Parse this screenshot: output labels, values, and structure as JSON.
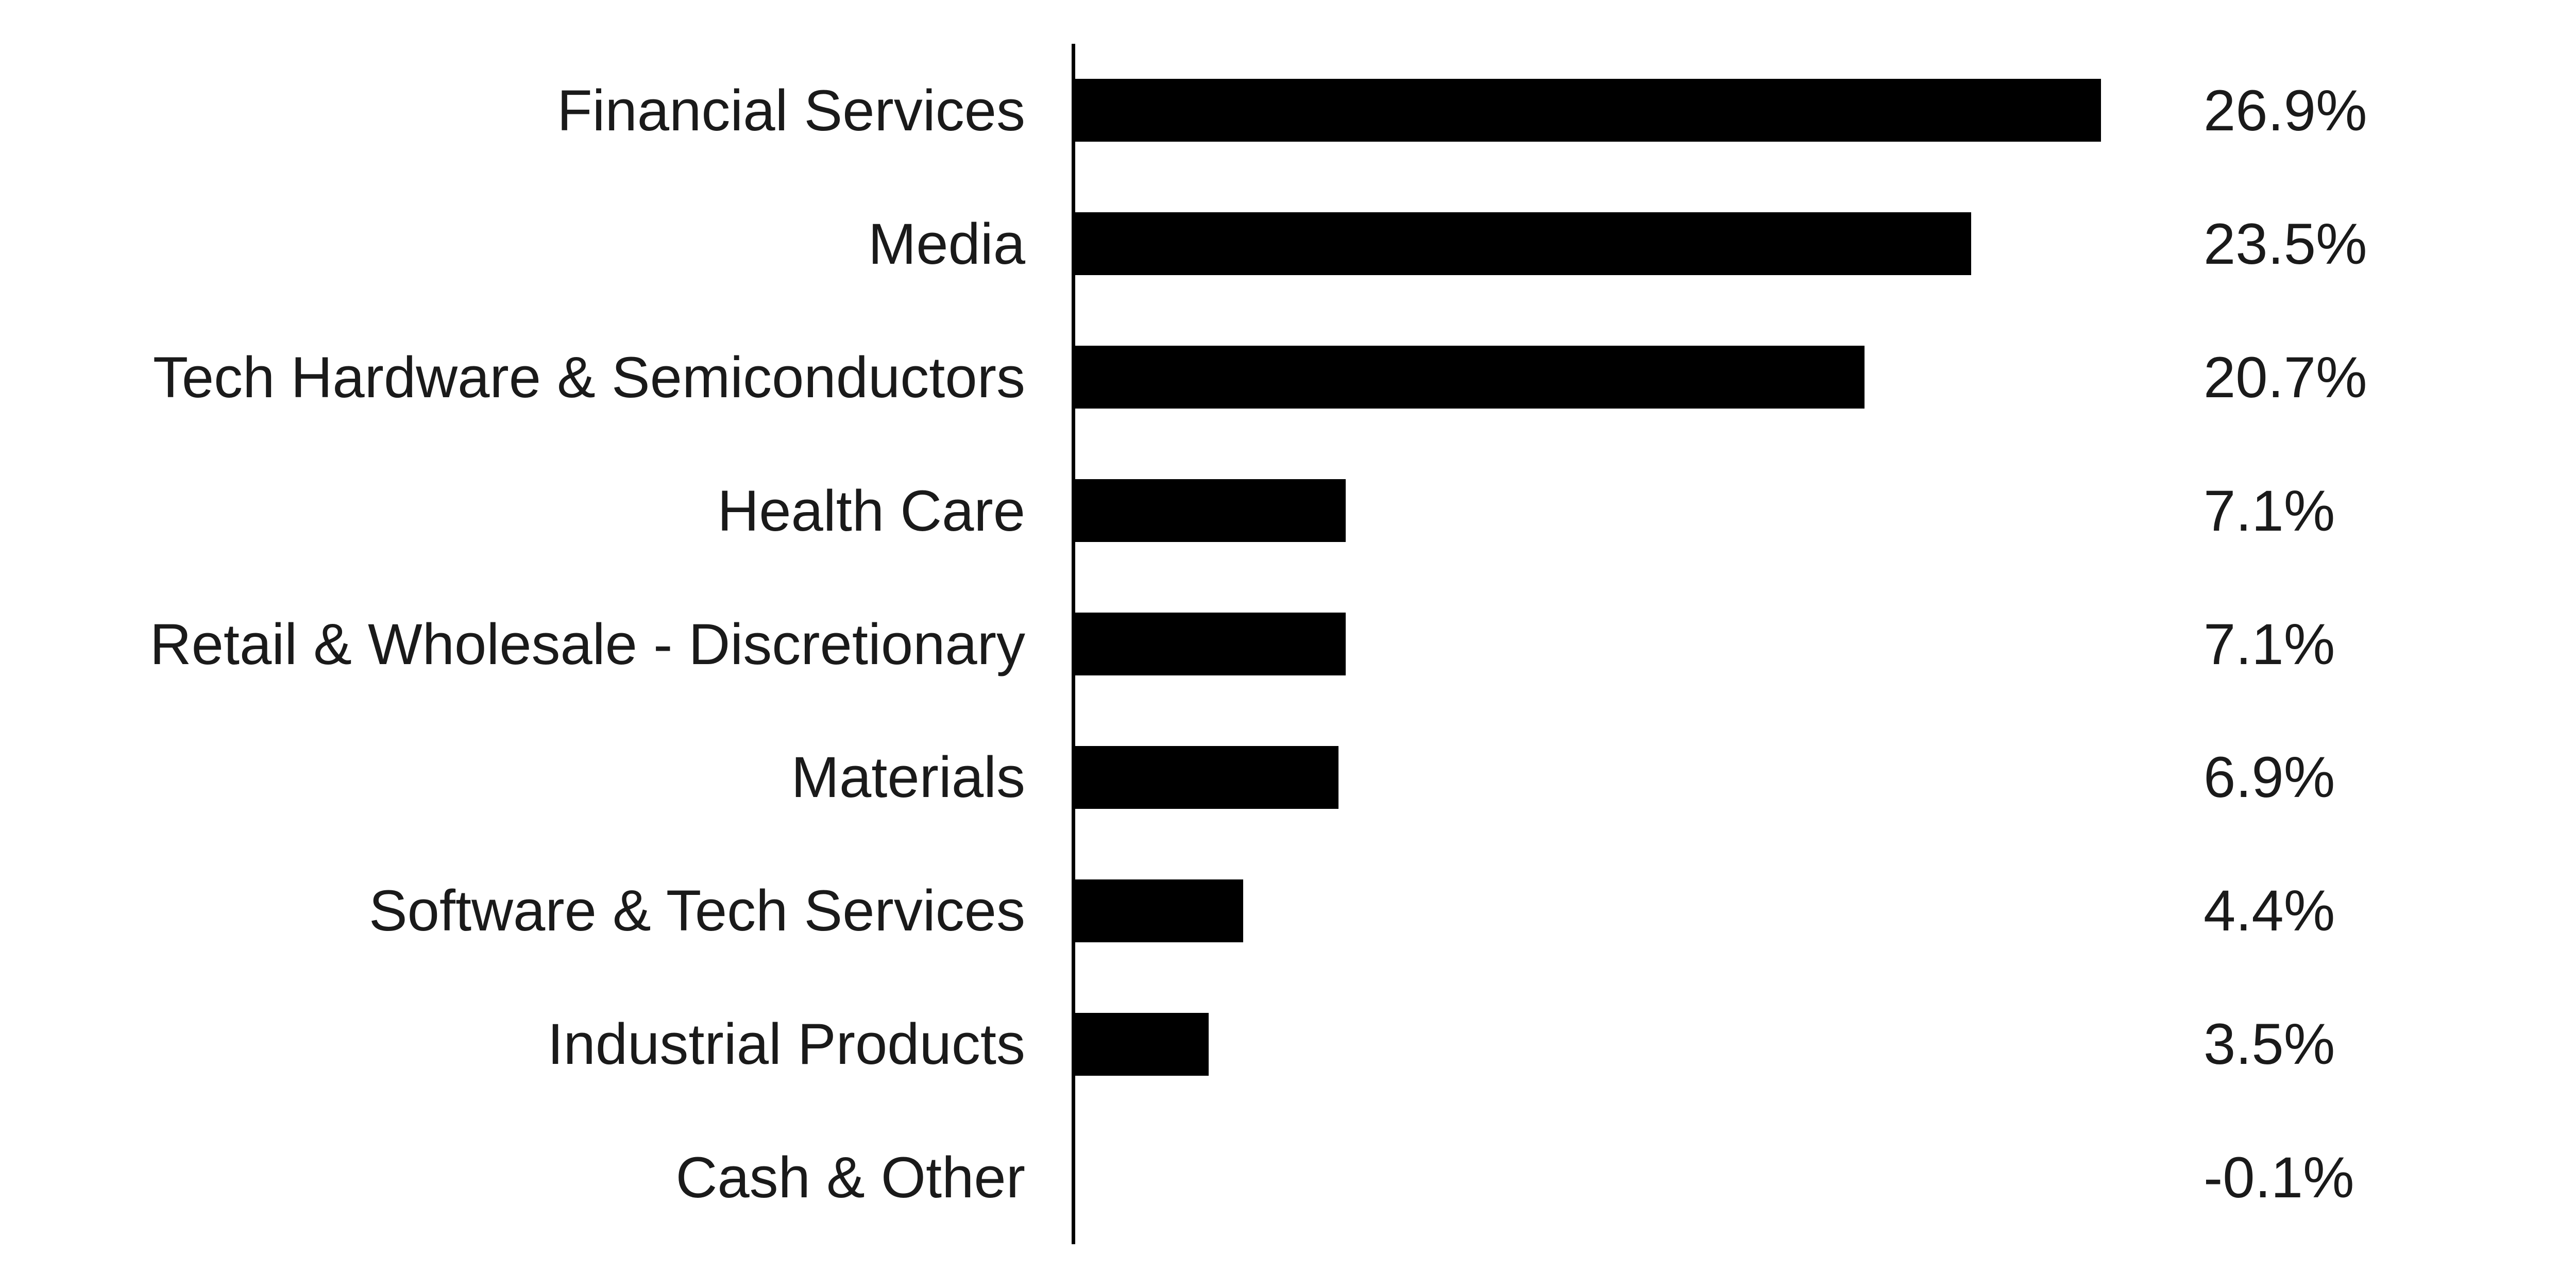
{
  "chart_data": {
    "type": "bar",
    "orientation": "horizontal",
    "title": "",
    "xlabel": "",
    "ylabel": "",
    "categories": [
      "Financial Services",
      "Media",
      "Tech Hardware & Semiconductors",
      "Health Care",
      "Retail & Wholesale - Discretionary",
      "Materials",
      "Software & Tech Services",
      "Industrial Products",
      "Cash & Other"
    ],
    "values": [
      26.9,
      23.5,
      20.7,
      7.1,
      7.1,
      6.9,
      4.4,
      3.5,
      -0.1
    ],
    "value_labels": [
      "26.9%",
      "23.5%",
      "20.7%",
      "7.1%",
      "7.1%",
      "6.9%",
      "4.4%",
      "3.5%",
      "-0.1%"
    ],
    "xlim": [
      0,
      28.8
    ],
    "grid": false,
    "legend": false,
    "bar_color": "#000000",
    "axis_line_color": "#000000",
    "text_color": "#1a1a1a",
    "background_color": "#ffffff"
  },
  "layout_hints": {
    "value_labels_position": "right",
    "category_labels_position": "left",
    "baseline_axis": "vertical-left"
  }
}
